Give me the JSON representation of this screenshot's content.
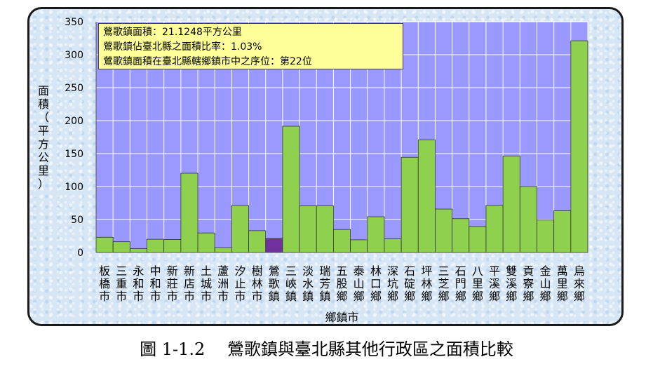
{
  "chart_data": {
    "type": "bar",
    "xlabel": "鄉鎮市",
    "ylabel": "面積（平方公里）",
    "ylim": [
      0,
      350
    ],
    "yticks": [
      0,
      50,
      100,
      150,
      200,
      250,
      300,
      350
    ],
    "grid": true,
    "categories": [
      "板橋市",
      "三重市",
      "永和市",
      "中和市",
      "新莊市",
      "新店市",
      "土城市",
      "蘆洲市",
      "汐止市",
      "樹林市",
      "鶯歌鎮",
      "三峽鎮",
      "淡水鎮",
      "瑞芳鎮",
      "五股鄉",
      "泰山鄉",
      "林口鄉",
      "深坑鄉",
      "石碇鄉",
      "坪林鄉",
      "三芝鄉",
      "石門鄉",
      "八里鄉",
      "平溪鄉",
      "雙溪鄉",
      "貢寮鄉",
      "金山鄉",
      "萬里鄉",
      "烏來鄉"
    ],
    "values": [
      23.1,
      16.3,
      5.7,
      20.1,
      19.7,
      120.2,
      29.6,
      7.4,
      71.2,
      33.1,
      21.1,
      191.5,
      70.7,
      70.7,
      34.9,
      19.2,
      54.2,
      20.6,
      144.4,
      170.8,
      65.9,
      51.3,
      39.5,
      71.3,
      146.3,
      99.97,
      49.2,
      63.4,
      321.1
    ],
    "highlight_index": 10,
    "colors": {
      "bar": "#8fd14f",
      "highlight": "#7030a0",
      "plot_bg": "#9999ff",
      "grid": "#ffffff"
    }
  },
  "info_box": {
    "line1": "鶯歌鎮面積：21.1248平方公里",
    "line2": "鶯歌鎮佔臺北縣之面積比率：1.03%",
    "line3": "鶯歌鎮面積在臺北縣轄鄉鎮市中之序位：第22位"
  },
  "caption": "圖 1-1.2　 鶯歌鎮與臺北縣其他行政區之面積比較"
}
